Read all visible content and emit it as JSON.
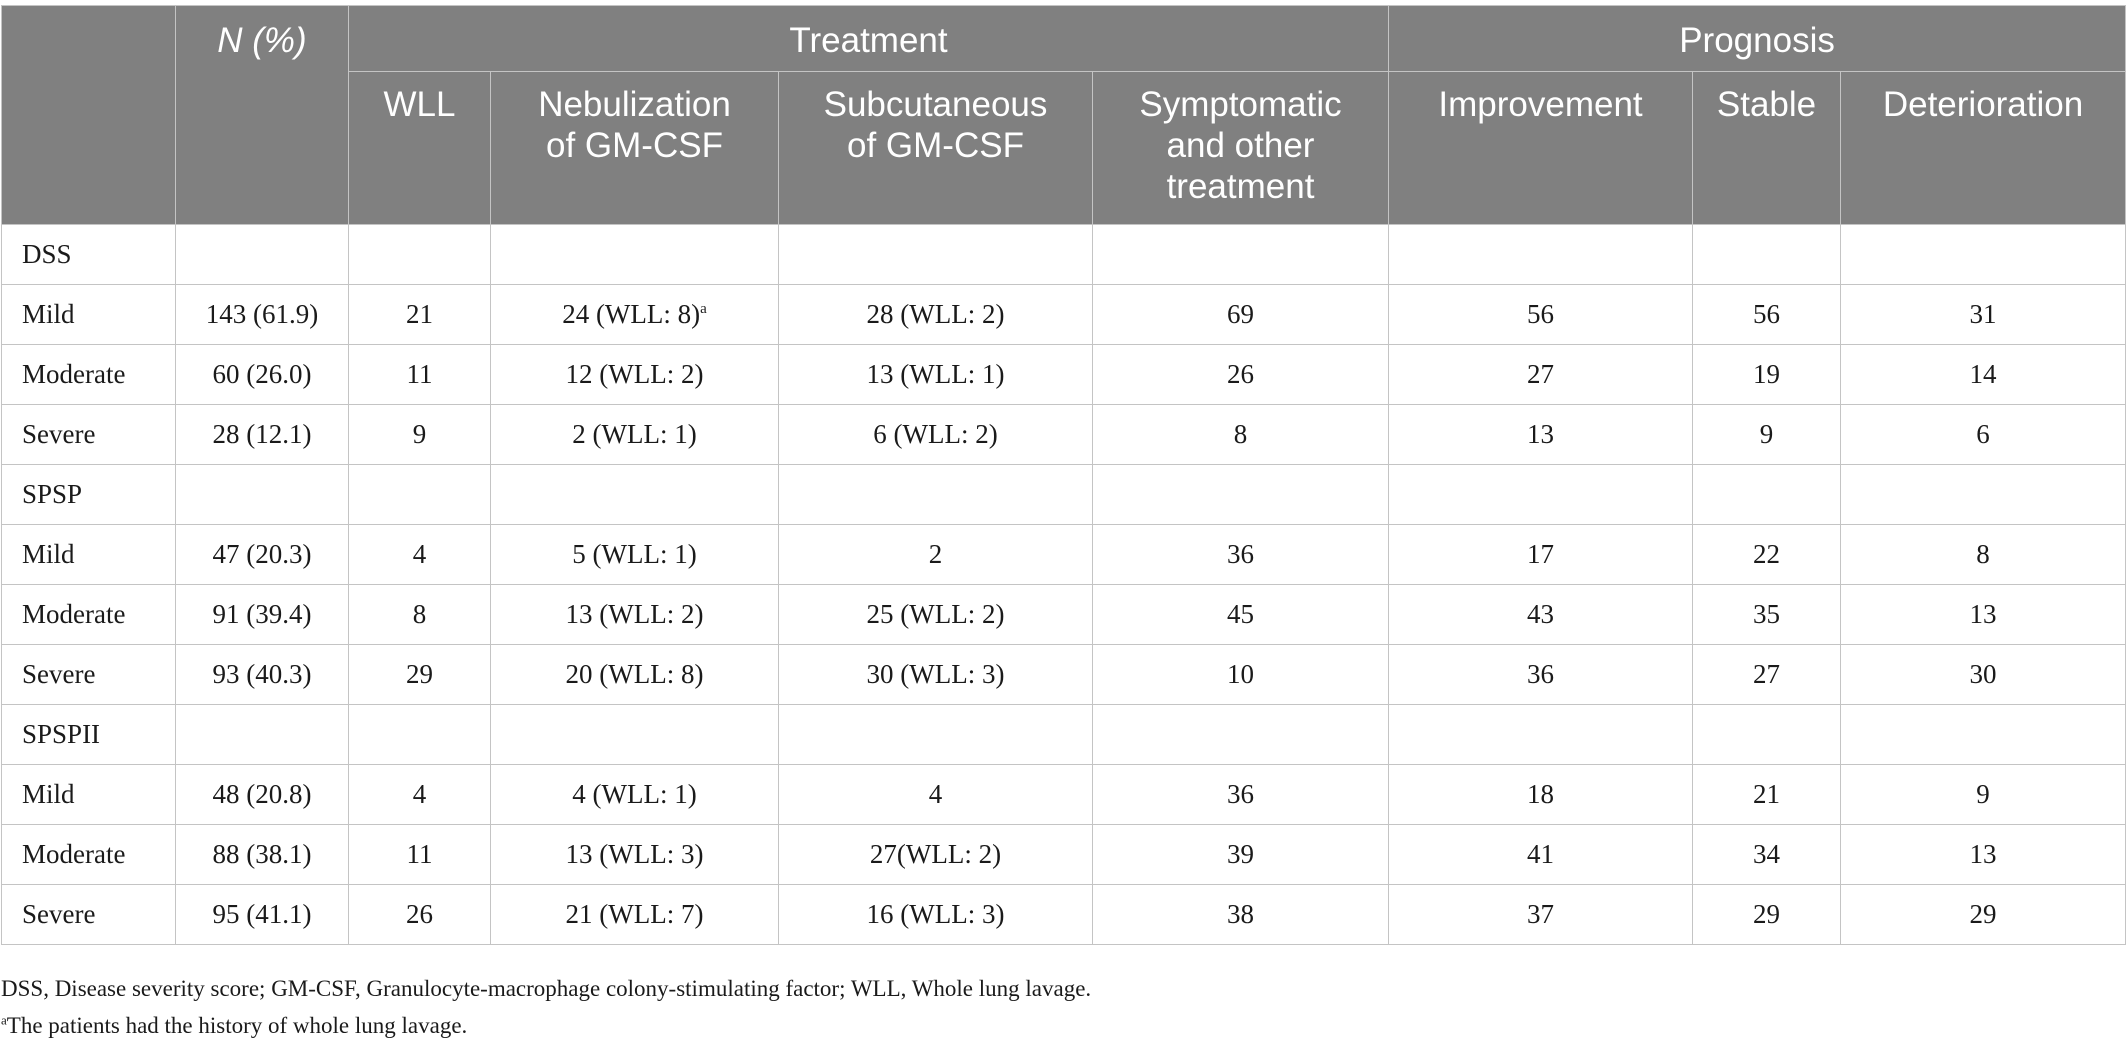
{
  "header": {
    "n_percent": "N (%)",
    "treatment": "Treatment",
    "prognosis": "Prognosis",
    "columns": {
      "wll": "WLL",
      "nebulization": "Nebulization of GM-CSF",
      "subcutaneous": "Subcutaneous of GM-CSF",
      "symptomatic": "Symptomatic and other treatment",
      "improvement": "Improvement",
      "stable": "Stable",
      "deterioration": "Deterioration"
    }
  },
  "groups": [
    {
      "name": "DSS",
      "rows": [
        {
          "label": "Mild",
          "n": "143 (61.9)",
          "wll": "21",
          "neb": "24 (WLL: 8)",
          "neb_sup": "a",
          "sub": "28 (WLL: 2)",
          "sym": "69",
          "imp": "56",
          "sta": "56",
          "det": "31"
        },
        {
          "label": "Moderate",
          "n": "60 (26.0)",
          "wll": "11",
          "neb": "12 (WLL: 2)",
          "sub": "13 (WLL: 1)",
          "sym": "26",
          "imp": "27",
          "sta": "19",
          "det": "14"
        },
        {
          "label": "Severe",
          "n": "28 (12.1)",
          "wll": "9",
          "neb": "2 (WLL: 1)",
          "sub": "6 (WLL: 2)",
          "sym": "8",
          "imp": "13",
          "sta": "9",
          "det": "6"
        }
      ]
    },
    {
      "name": "SPSP",
      "rows": [
        {
          "label": "Mild",
          "n": "47 (20.3)",
          "wll": "4",
          "neb": "5 (WLL: 1)",
          "sub": "2",
          "sym": "36",
          "imp": "17",
          "sta": "22",
          "det": "8"
        },
        {
          "label": "Moderate",
          "n": "91 (39.4)",
          "wll": "8",
          "neb": "13 (WLL: 2)",
          "sub": "25 (WLL: 2)",
          "sym": "45",
          "imp": "43",
          "sta": "35",
          "det": "13"
        },
        {
          "label": "Severe",
          "n": "93 (40.3)",
          "wll": "29",
          "neb": "20 (WLL: 8)",
          "sub": "30 (WLL: 3)",
          "sym": "10",
          "imp": "36",
          "sta": "27",
          "det": "30"
        }
      ]
    },
    {
      "name": "SPSPII",
      "rows": [
        {
          "label": "Mild",
          "n": "48 (20.8)",
          "wll": "4",
          "neb": "4 (WLL: 1)",
          "sub": "4",
          "sym": "36",
          "imp": "18",
          "sta": "21",
          "det": "9"
        },
        {
          "label": "Moderate",
          "n": "88 (38.1)",
          "wll": "11",
          "neb": "13 (WLL: 3)",
          "sub": "27(WLL: 2)",
          "sym": "39",
          "imp": "41",
          "sta": "34",
          "det": "13"
        },
        {
          "label": "Severe",
          "n": "95 (41.1)",
          "wll": "26",
          "neb": "21 (WLL: 7)",
          "sub": "16 (WLL: 3)",
          "sym": "38",
          "imp": "37",
          "sta": "29",
          "det": "29"
        }
      ]
    }
  ],
  "footnotes": {
    "abbreviations": "DSS, Disease severity score; GM-CSF, Granulocyte-macrophage colony-stimulating factor; WLL, Whole lung lavage.",
    "note_marker": "a",
    "note_text": "The patients had the history of whole lung lavage."
  }
}
